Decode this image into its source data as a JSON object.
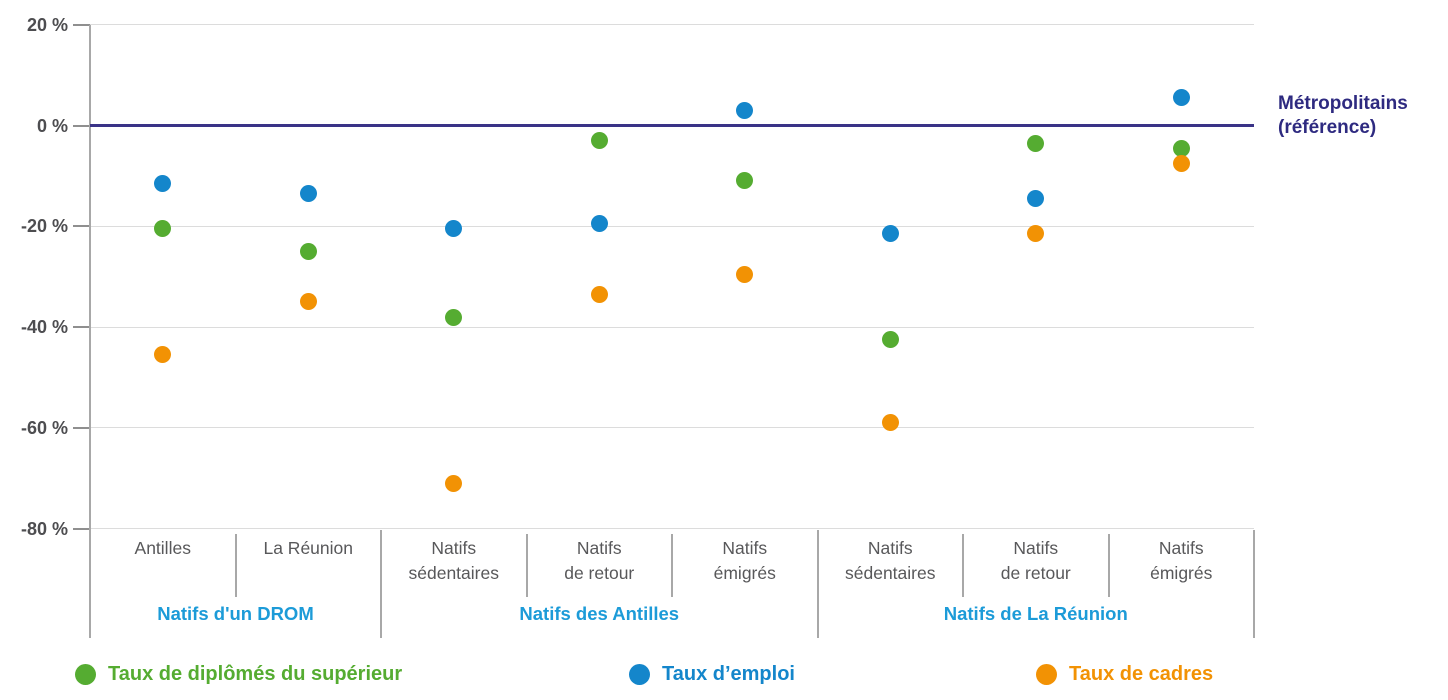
{
  "chart_data": {
    "type": "scatter",
    "title": "",
    "unit": "%",
    "y_axis": {
      "ylim": [
        -80,
        20
      ],
      "tick_values": [
        20,
        0,
        -20,
        -40,
        -60,
        -80
      ],
      "tick_labels": [
        "20 %",
        "0 %",
        "-20 %",
        "-40 %",
        "-60 %",
        "-80 %"
      ],
      "grid": true
    },
    "reference_line": {
      "value": 0,
      "label_line1": "Métropolitains",
      "label_line2": "(référence)",
      "color": "#3a3387",
      "label_color": "#2e2a80"
    },
    "categories": [
      {
        "line1": "Antilles",
        "line2": ""
      },
      {
        "line1": "La Réunion",
        "line2": ""
      },
      {
        "line1": "Natifs",
        "line2": "sédentaires"
      },
      {
        "line1": "Natifs",
        "line2": "de retour"
      },
      {
        "line1": "Natifs",
        "line2": "émigrés"
      },
      {
        "line1": "Natifs",
        "line2": "sédentaires"
      },
      {
        "line1": "Natifs",
        "line2": "de retour"
      },
      {
        "line1": "Natifs",
        "line2": "émigrés"
      }
    ],
    "groups": [
      {
        "label": "Natifs d'un DROM",
        "span": 2
      },
      {
        "label": "Natifs des Antilles",
        "span": 3
      },
      {
        "label": "Natifs de La Réunion",
        "span": 3
      }
    ],
    "series": [
      {
        "name": "Taux de diplômés du supérieur",
        "color": "#55ac31",
        "values": [
          -20.5,
          -25,
          -38,
          -3,
          -11,
          -42.5,
          -3.5,
          -4.5
        ]
      },
      {
        "name": "Taux d’emploi",
        "color": "#1486cb",
        "values": [
          -11.5,
          -13.5,
          -20.5,
          -19.5,
          3,
          -21.5,
          -14.5,
          5.5
        ]
      },
      {
        "name": "Taux de cadres",
        "color": "#f29204",
        "values": [
          -45.5,
          -35,
          -71,
          -33.5,
          -29.5,
          -59,
          -21.5,
          -7.5
        ]
      }
    ],
    "legend_position": "bottom"
  }
}
